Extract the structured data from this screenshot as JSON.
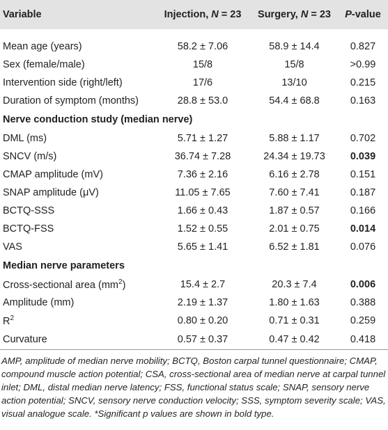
{
  "table": {
    "header": [
      "Variable",
      [
        "Injection, ",
        "N",
        " = 23"
      ],
      [
        "Surgery, ",
        "N",
        " = 23"
      ],
      [
        "P",
        "-value"
      ]
    ],
    "rows": [
      [
        "Mean age (years)",
        "58.2 ± 7.06",
        "58.9 ± 14.4",
        "0.827"
      ],
      [
        "Sex (female/male)",
        "15/8",
        "15/8",
        ">0.99"
      ],
      [
        "Intervention side (right/left)",
        "17/6",
        "13/10",
        "0.215"
      ],
      [
        "Duration of symptom (months)",
        "28.8 ± 53.0",
        "54.4 ± 68.8",
        "0.163"
      ],
      [
        "Nerve conduction study (median nerve)"
      ],
      [
        "DML (ms)",
        "5.71 ± 1.27",
        "5.88 ± 1.17",
        "0.702"
      ],
      [
        "SNCV (m/s)",
        "36.74 ± 7.28",
        "24.34 ± 19.73",
        "0.039"
      ],
      [
        "CMAP amplitude (mV)",
        "7.36 ± 2.16",
        "6.16 ± 2.78",
        "0.151"
      ],
      [
        "SNAP amplitude (μV)",
        "11.05 ± 7.65",
        "7.60 ± 7.41",
        "0.187"
      ],
      [
        "BCTQ-SSS",
        "1.66 ± 0.43",
        "1.87 ± 0.57",
        "0.166"
      ],
      [
        "BCTQ-FSS",
        "1.52 ± 0.55",
        "2.01 ± 0.75",
        "0.014"
      ],
      [
        "VAS",
        "5.65 ± 1.41",
        "6.52 ± 1.81",
        "0.076"
      ],
      [
        "Median nerve parameters"
      ],
      [
        [
          "Cross-sectional area (mm",
          "2",
          ")"
        ],
        "15.4 ± 2.7",
        "20.3 ± 7.4",
        "0.006"
      ],
      [
        "Amplitude (mm)",
        "2.19 ± 1.37",
        "1.80 ± 1.63",
        "0.388"
      ],
      [
        [
          "R",
          "2"
        ],
        "0.80 ± 0.20",
        "0.71 ± 0.31",
        "0.259"
      ],
      [
        "Curvature",
        "0.57 ± 0.37",
        "0.47 ± 0.42",
        "0.418"
      ]
    ],
    "footnote": "AMP, amplitude of median nerve mobility; BCTQ, Boston carpal tunnel questionnaire; CMAP, compound muscle action potential; CSA, cross-sectional area of median nerve at carpal tunnel inlet; DML, distal median nerve latency; FSS, functional status scale; SNAP, sensory nerve action potential; SNCV, sensory nerve conduction velocity; SSS, symptom severity scale; VAS, visual analogue scale. *Significant p values are shown in bold type."
  }
}
